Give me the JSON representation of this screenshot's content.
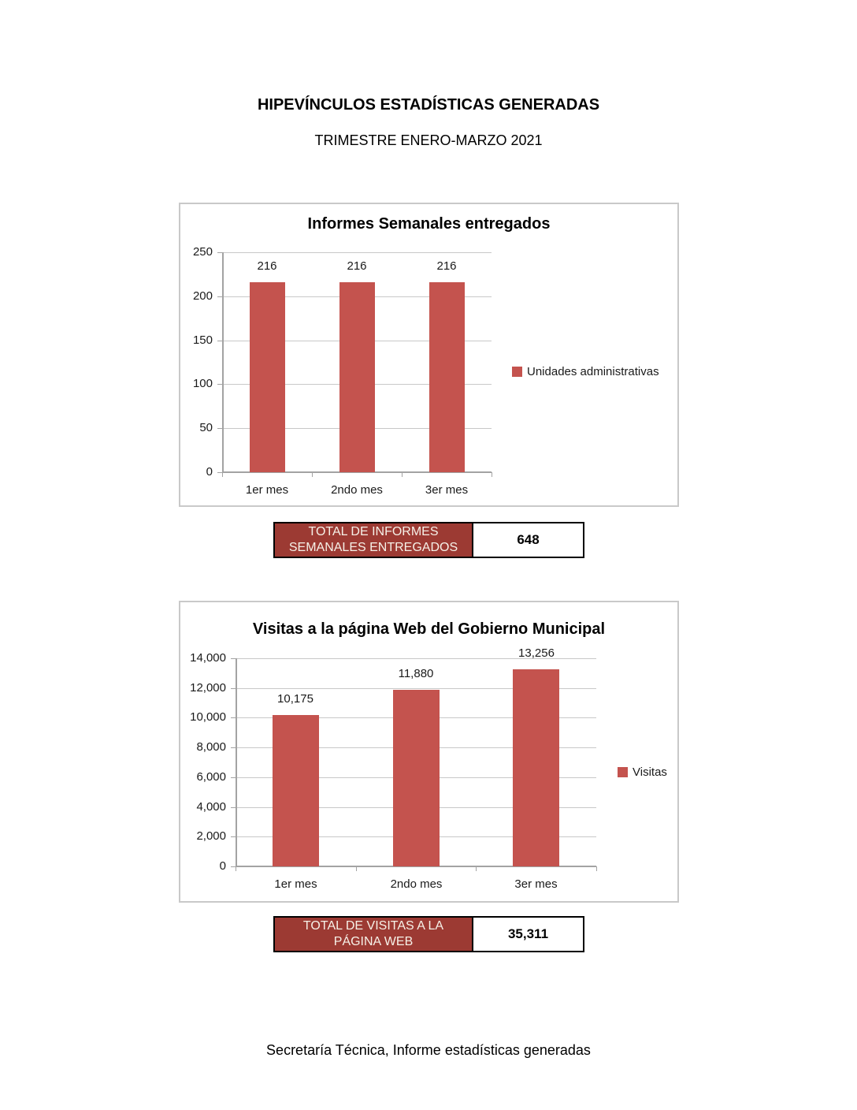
{
  "page": {
    "title": "HIPEVÍNCULOS ESTADÍSTICAS GENERADAS",
    "subtitle": "TRIMESTRE ENERO-MARZO 2021",
    "footer": "Secretaría Técnica, Informe estadísticas generadas"
  },
  "colors": {
    "bar": "#c4534e",
    "total_box_bg": "#9c3a33",
    "total_box_text": "#f6f1e8",
    "gridline": "#c8c8c8",
    "axis": "#a3a3a3",
    "panel_border": "#c9c9c9"
  },
  "chart_data": [
    {
      "type": "bar",
      "title": "Informes Semanales entregados",
      "categories": [
        "1er mes",
        "2ndo mes",
        "3er mes"
      ],
      "series": [
        {
          "name": "Unidades administrativas",
          "values": [
            216,
            216,
            216
          ]
        }
      ],
      "data_labels": [
        "216",
        "216",
        "216"
      ],
      "ylim": [
        0,
        250
      ],
      "ytick_labels": [
        "250",
        "200",
        "150",
        "100",
        "50",
        "0"
      ],
      "legend_position": "right",
      "grid": true
    },
    {
      "type": "bar",
      "title": "Visitas a la página Web del Gobierno Municipal",
      "categories": [
        "1er mes",
        "2ndo mes",
        "3er mes"
      ],
      "series": [
        {
          "name": "Visitas",
          "values": [
            10175,
            11880,
            13256
          ]
        }
      ],
      "data_labels": [
        "10,175",
        "11,880",
        "13,256"
      ],
      "ylim": [
        0,
        14000
      ],
      "ytick_labels": [
        "14,000",
        "12,000",
        "10,000",
        "8,000",
        "6,000",
        "4,000",
        "2,000",
        "0"
      ],
      "legend_position": "right",
      "grid": true
    }
  ],
  "totals": [
    {
      "label_line1": "TOTAL DE INFORMES",
      "label_line2": "SEMANALES ENTREGADOS",
      "value": "648"
    },
    {
      "label_line1": "TOTAL DE VISITAS A LA",
      "label_line2": "PÁGINA WEB",
      "value": "35,311"
    }
  ]
}
